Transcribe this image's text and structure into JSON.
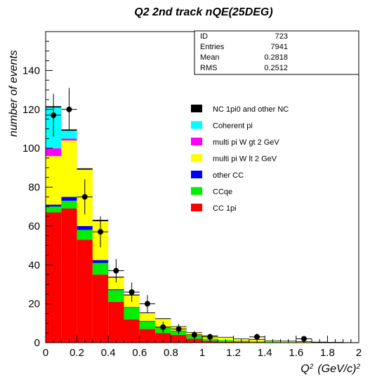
{
  "chart_data": {
    "type": "bar",
    "stacked": true,
    "title": "Q2 2nd track nQE(25DEG)",
    "ylabel": "number of events",
    "xlabel_main": "Q",
    "xlabel_sup": "2",
    "xlabel_unit": "(GeV/c)",
    "xlabel_unit_sup": "2",
    "xlim": [
      0,
      2
    ],
    "ylim": [
      0,
      160
    ],
    "x_ticks": [
      "0",
      "0.2",
      "0.4",
      "0.6",
      "0.8",
      "1",
      "1.2",
      "1.4",
      "1.6",
      "1.8",
      "2"
    ],
    "y_ticks": [
      "0",
      "20",
      "40",
      "60",
      "80",
      "100",
      "120",
      "140"
    ],
    "bin_edges": [
      0,
      0.1,
      0.2,
      0.3,
      0.4,
      0.5,
      0.6,
      0.7,
      0.8,
      0.9,
      1.0,
      1.1,
      1.2,
      1.3,
      1.4,
      1.5,
      1.6,
      1.7,
      1.8,
      1.9,
      2.0
    ],
    "series": [
      {
        "name": "CC 1pi",
        "color": "#ff0000",
        "values": [
          67,
          69,
          53,
          35,
          21,
          12,
          7,
          5,
          4,
          2,
          1,
          0.5,
          0.5,
          0.3,
          0.2,
          0.1,
          0.1,
          0,
          0,
          0
        ]
      },
      {
        "name": "CCqe",
        "color": "#00ee00",
        "values": [
          3,
          4,
          5,
          6,
          6,
          6,
          4,
          3,
          2,
          1.5,
          1,
          0.8,
          0.5,
          0.4,
          0.3,
          0.2,
          0.1,
          0.1,
          0.1,
          0
        ]
      },
      {
        "name": "other CC",
        "color": "#0000ff",
        "values": [
          1,
          2,
          2,
          1.5,
          0.5,
          0.3,
          0.2,
          0.2,
          0.2,
          0.1,
          0,
          0,
          0,
          0,
          0,
          0,
          0,
          0,
          0,
          0
        ]
      },
      {
        "name": "multi pi W lt 2 GeV",
        "color": "#ffff00",
        "values": [
          25,
          29,
          29,
          20,
          6,
          6,
          4,
          4,
          2,
          1.5,
          1.5,
          1.5,
          1,
          1,
          0.5,
          0.5,
          0.3,
          0.2,
          0.1,
          0.1
        ]
      },
      {
        "name": "multi pi W gt 2 GeV",
        "color": "#ff00ff",
        "values": [
          4,
          1,
          0,
          0,
          0,
          0,
          0,
          0,
          0,
          0,
          0,
          0,
          0,
          0,
          0,
          0,
          0,
          0,
          0,
          0
        ]
      },
      {
        "name": "Coherent pi",
        "color": "#00ffff",
        "values": [
          21,
          4,
          0,
          0,
          0,
          0,
          0,
          0,
          0,
          0,
          0,
          0,
          0,
          0,
          0,
          0,
          0,
          0,
          0,
          0
        ]
      },
      {
        "name": "NC 1pi0 and other NC",
        "color": "#000000",
        "values": [
          0.5,
          0.5,
          0.5,
          0.5,
          0.3,
          0.3,
          0.2,
          0.2,
          0.1,
          0.1,
          0.1,
          0,
          0,
          0,
          0,
          0,
          0,
          0,
          0,
          0
        ]
      }
    ],
    "data_points": [
      {
        "x": 0.05,
        "y": 117,
        "err": 11
      },
      {
        "x": 0.15,
        "y": 120,
        "err": 11
      },
      {
        "x": 0.25,
        "y": 75,
        "err": 9
      },
      {
        "x": 0.35,
        "y": 57,
        "err": 8
      },
      {
        "x": 0.45,
        "y": 37,
        "err": 6
      },
      {
        "x": 0.55,
        "y": 26,
        "err": 5
      },
      {
        "x": 0.65,
        "y": 20,
        "err": 4.5
      },
      {
        "x": 0.75,
        "y": 8,
        "err": 2.8
      },
      {
        "x": 0.85,
        "y": 7,
        "err": 2.6
      },
      {
        "x": 0.95,
        "y": 4,
        "err": 2
      },
      {
        "x": 1.05,
        "y": 3,
        "err": 1.7
      },
      {
        "x": 1.35,
        "y": 3,
        "err": 1.7
      },
      {
        "x": 1.65,
        "y": 2,
        "err": 1.4
      }
    ],
    "stats": [
      {
        "label": "ID",
        "value": "723"
      },
      {
        "label": "Entries",
        "value": "7941"
      },
      {
        "label": "Mean",
        "value": "0.2818"
      },
      {
        "label": "RMS",
        "value": "0.2512"
      }
    ],
    "legend_placement": "right",
    "grid": false
  }
}
